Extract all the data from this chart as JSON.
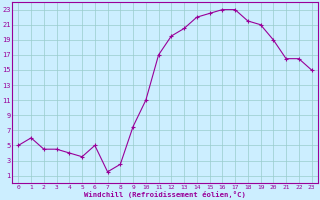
{
  "x": [
    0,
    1,
    2,
    3,
    4,
    5,
    6,
    7,
    8,
    9,
    10,
    11,
    12,
    13,
    14,
    15,
    16,
    17,
    18,
    19,
    20,
    21,
    22,
    23
  ],
  "y": [
    5,
    6,
    4.5,
    4.5,
    4,
    3.5,
    5,
    1.5,
    2.5,
    7.5,
    11,
    17,
    19.5,
    20.5,
    22,
    22.5,
    23,
    23,
    21.5,
    21,
    19,
    16.5,
    16.5,
    15
  ],
  "line_color": "#990099",
  "marker": "+",
  "bg_color": "#cceeff",
  "grid_color": "#99cccc",
  "xlabel": "Windchill (Refroidissement éolien,°C)",
  "xlabel_color": "#990099",
  "tick_color": "#990099",
  "spine_color": "#990099",
  "ylim": [
    0,
    24
  ],
  "xlim": [
    0,
    23
  ],
  "yticks": [
    1,
    3,
    5,
    7,
    9,
    11,
    13,
    15,
    17,
    19,
    21,
    23
  ],
  "xticks": [
    0,
    1,
    2,
    3,
    4,
    5,
    6,
    7,
    8,
    9,
    10,
    11,
    12,
    13,
    14,
    15,
    16,
    17,
    18,
    19,
    20,
    21,
    22,
    23
  ]
}
